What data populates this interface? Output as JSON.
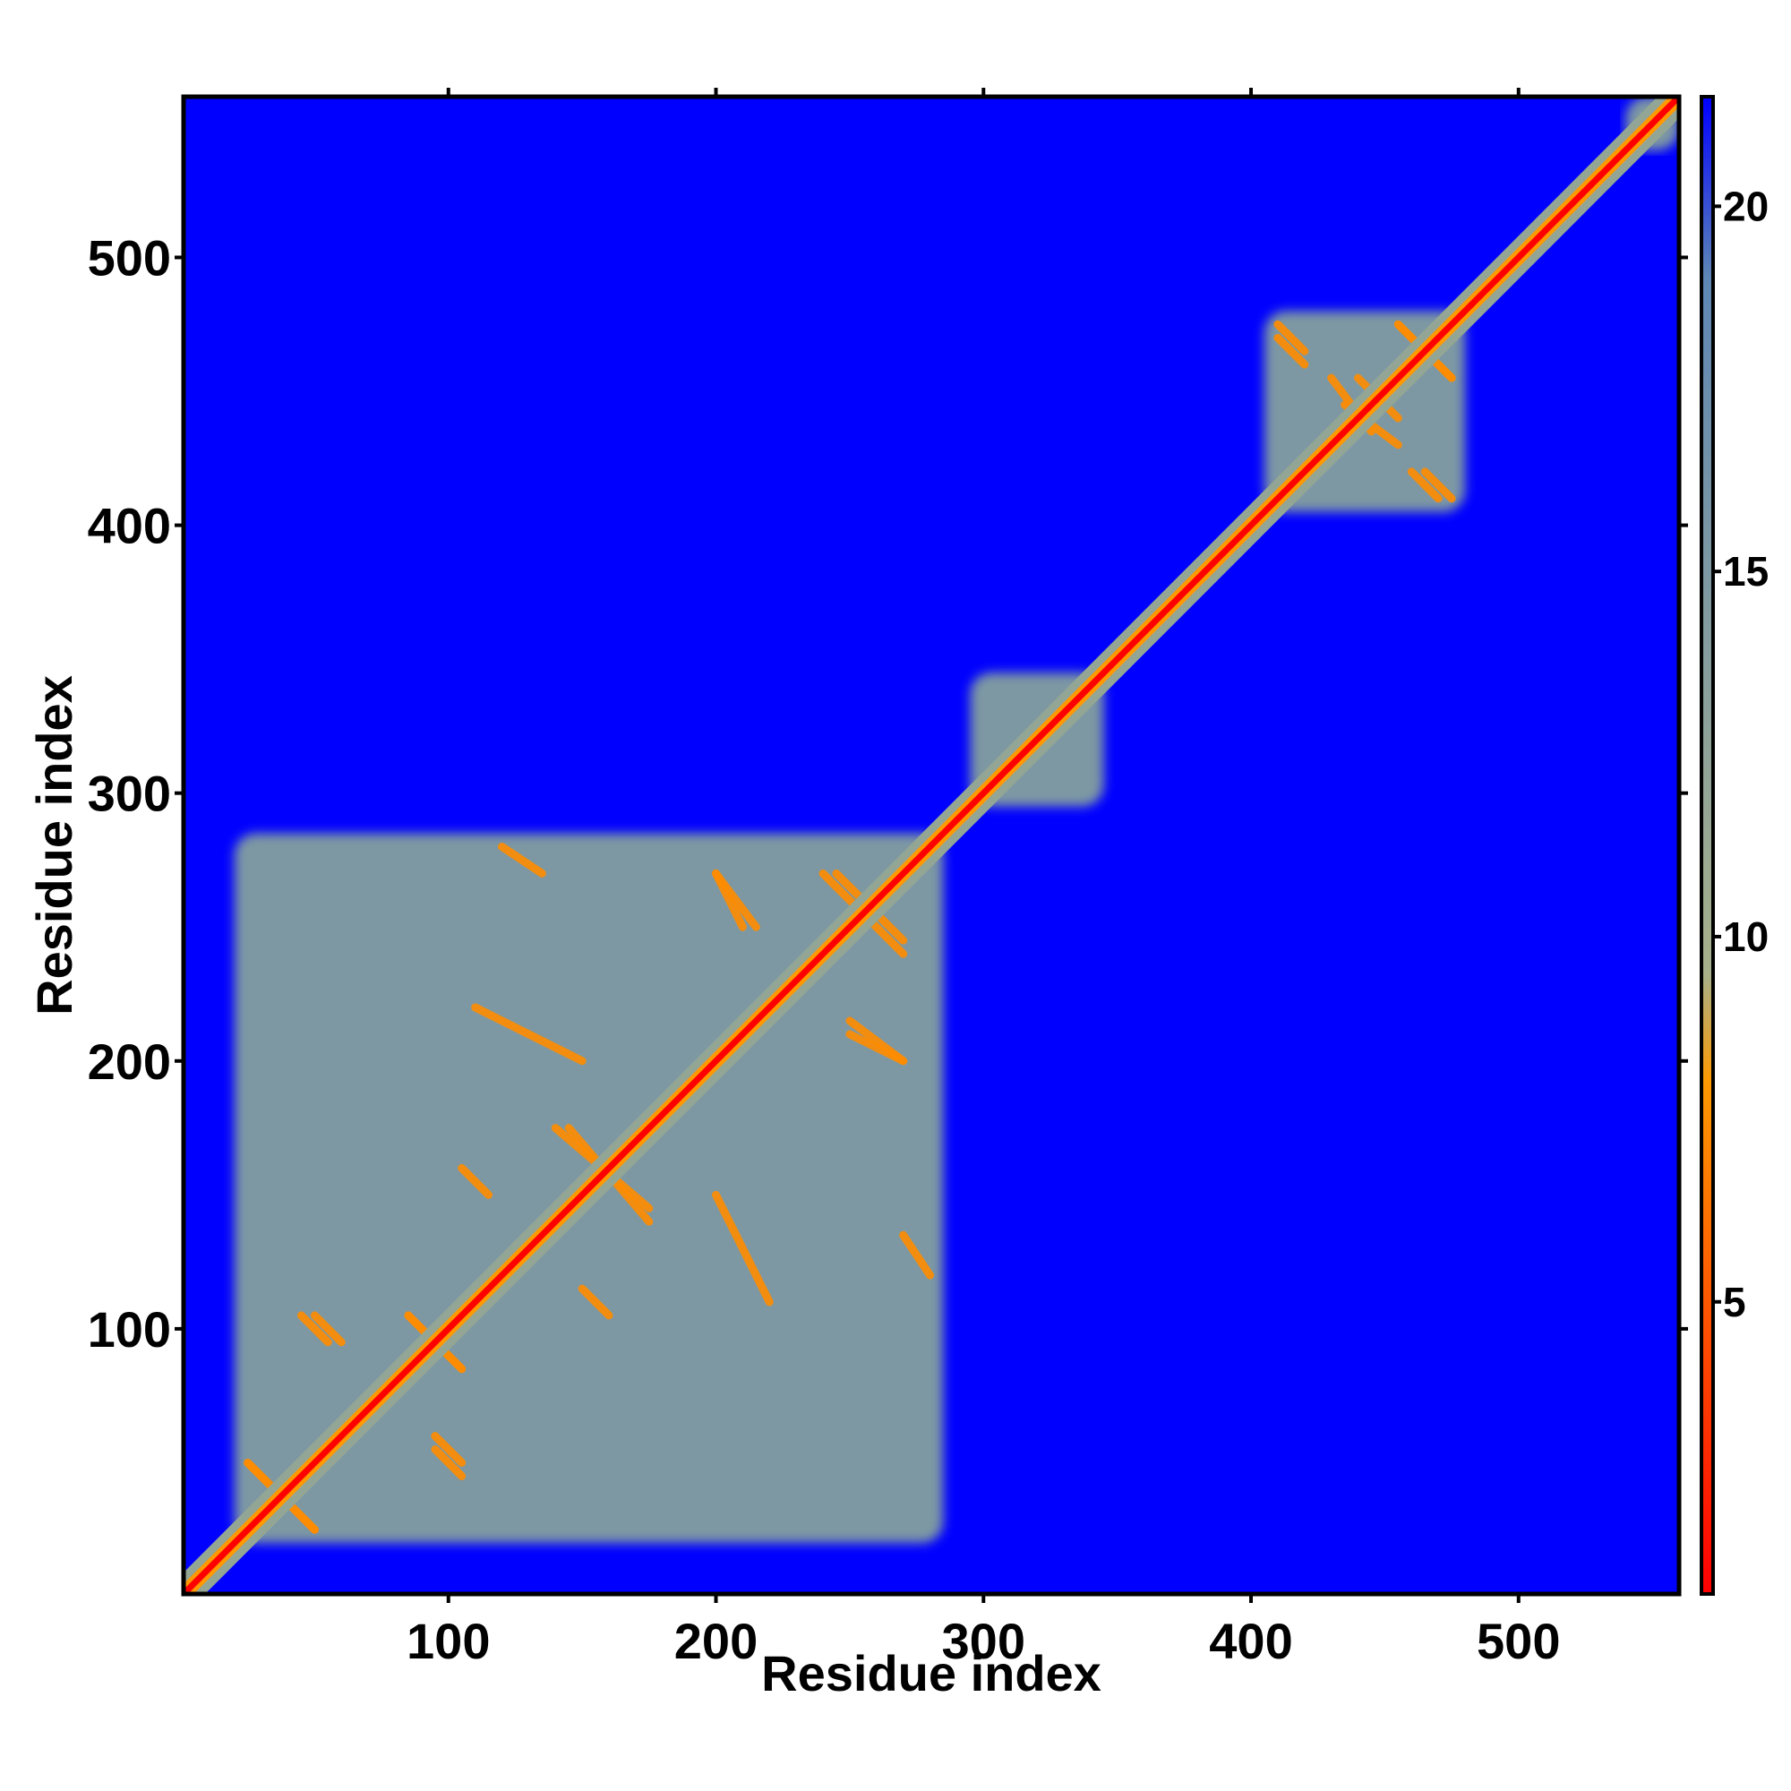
{
  "chart_data": {
    "type": "heatmap",
    "title": "",
    "xlabel": "Residue index",
    "ylabel": "Residue index",
    "xlim": [
      1,
      560
    ],
    "ylim": [
      1,
      560
    ],
    "x_ticks": [
      100,
      200,
      300,
      400,
      500
    ],
    "y_ticks": [
      100,
      200,
      300,
      400,
      500
    ],
    "x_tick_labels": [
      "100",
      "200",
      "300",
      "400",
      "500"
    ],
    "y_tick_labels": [
      "100",
      "200",
      "300",
      "400",
      "500"
    ],
    "colorbar": {
      "range": [
        1,
        21.5
      ],
      "ticks": [
        5,
        10,
        15,
        20
      ],
      "tick_labels": [
        "5",
        "10",
        "15",
        "20"
      ],
      "colors": [
        "#ff0000",
        "#ff9900",
        "#a6b08a",
        "#5f87b5",
        "#0000ff"
      ],
      "stops": [
        1,
        8,
        9.5,
        19,
        21.5
      ]
    },
    "background_value": 21,
    "diagonal_value": 1,
    "domains": [
      {
        "start": 20,
        "end": 285,
        "value": 15
      },
      {
        "start": 295,
        "end": 345,
        "value": 15
      },
      {
        "start": 405,
        "end": 480,
        "value": 15
      },
      {
        "start": 540,
        "end": 560,
        "value": 15
      }
    ],
    "contact_lines": [
      {
        "x1": 25,
        "y1": 50,
        "x2": 50,
        "y2": 25
      },
      {
        "x1": 45,
        "y1": 105,
        "x2": 55,
        "y2": 95
      },
      {
        "x1": 95,
        "y1": 60,
        "x2": 105,
        "y2": 50
      },
      {
        "x1": 85,
        "y1": 105,
        "x2": 105,
        "y2": 85
      },
      {
        "x1": 110,
        "y1": 220,
        "x2": 150,
        "y2": 200
      },
      {
        "x1": 140,
        "y1": 175,
        "x2": 175,
        "y2": 145
      },
      {
        "x1": 150,
        "y1": 115,
        "x2": 160,
        "y2": 105
      },
      {
        "x1": 200,
        "y1": 270,
        "x2": 215,
        "y2": 250
      },
      {
        "x1": 240,
        "y1": 270,
        "x2": 255,
        "y2": 255
      },
      {
        "x1": 255,
        "y1": 260,
        "x2": 270,
        "y2": 245
      },
      {
        "x1": 120,
        "y1": 280,
        "x2": 135,
        "y2": 270
      },
      {
        "x1": 250,
        "y1": 210,
        "x2": 270,
        "y2": 200
      },
      {
        "x1": 410,
        "y1": 475,
        "x2": 420,
        "y2": 465
      },
      {
        "x1": 430,
        "y1": 455,
        "x2": 445,
        "y2": 435
      },
      {
        "x1": 455,
        "y1": 475,
        "x2": 475,
        "y2": 455
      },
      {
        "x1": 445,
        "y1": 450,
        "x2": 455,
        "y2": 440
      },
      {
        "x1": 460,
        "y1": 420,
        "x2": 470,
        "y2": 410
      }
    ],
    "grid": false,
    "legend": "colorbar-right"
  }
}
